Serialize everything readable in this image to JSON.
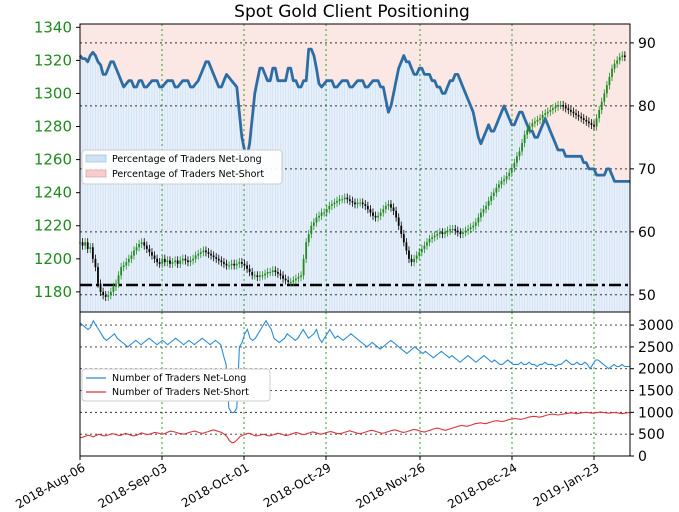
{
  "chart_data": [
    {
      "type": "line",
      "title": "Spot Gold Client Positioning",
      "left_axis": {
        "ylim": [
          1163,
          1342
        ],
        "ticks": [
          1180,
          1200,
          1220,
          1240,
          1260,
          1280,
          1300,
          1320,
          1340
        ],
        "color": "#1f8a1f"
      },
      "right_axis": {
        "ylim": [
          46,
          93
        ],
        "ticks": [
          50,
          60,
          70,
          80,
          90
        ]
      },
      "x_tick_labels": [
        "2018-Aug-06",
        "2018-Sep-03",
        "2018-Oct-01",
        "2018-Oct-29",
        "2018-Nov-26",
        "2018-Dec-24",
        "2019-Jan-23"
      ],
      "legend": {
        "placement": "upper-left",
        "entries": [
          {
            "label": "Percentage of Traders Net-Long",
            "color": "#cfe2f3"
          },
          {
            "label": "Percentage of Traders Net-Short",
            "color": "#f6cccc"
          }
        ]
      },
      "reference_line": {
        "value": 1179.5,
        "style": "dash-dot"
      },
      "series": [
        {
          "name": "Percentage of Traders Net-Long",
          "axis": "right",
          "color": "#2e6da4",
          "values": [
            88,
            87.5,
            87.5,
            87,
            88,
            88.5,
            88,
            87,
            86.5,
            85,
            85,
            86,
            87,
            87,
            86,
            85,
            84,
            83,
            83.5,
            84,
            84,
            83,
            83,
            84,
            84,
            83,
            83,
            83.5,
            84,
            84,
            84,
            83,
            83,
            83.5,
            84,
            84,
            84,
            83,
            83,
            83.5,
            84,
            84,
            84,
            83,
            83,
            83.5,
            84,
            85,
            86,
            87,
            87,
            86,
            85,
            84,
            83,
            83,
            84,
            85,
            84.5,
            84,
            83.5,
            83,
            79,
            75,
            73,
            72,
            74,
            78,
            82,
            84,
            86,
            86,
            85,
            84,
            84,
            86,
            86,
            84,
            84,
            84,
            84,
            86,
            86,
            84,
            84,
            83,
            83,
            84,
            84,
            89,
            89,
            88,
            86,
            83.5,
            83,
            83.5,
            84,
            84,
            84,
            83,
            83,
            83.5,
            84,
            84,
            84,
            83,
            83,
            83.5,
            84,
            84,
            84,
            83,
            83,
            83.5,
            84,
            84,
            84,
            83,
            83,
            81,
            79,
            80,
            82,
            84,
            86,
            87,
            88,
            87,
            87,
            86,
            85,
            85,
            86,
            86,
            85,
            85,
            85,
            84,
            84,
            83,
            83,
            82,
            82,
            83,
            84,
            84,
            85,
            85,
            84,
            83,
            82,
            81,
            80,
            79,
            77,
            75,
            74,
            75,
            76,
            77,
            76,
            76,
            77,
            78,
            79,
            80,
            79,
            78,
            77,
            77,
            78,
            79,
            79,
            78,
            77,
            76,
            76,
            75,
            75,
            76,
            77,
            78,
            77,
            76,
            75,
            74,
            73,
            73,
            73,
            72,
            72,
            72,
            72,
            72,
            72,
            72,
            71,
            71,
            70,
            70,
            70,
            69,
            69,
            69,
            69,
            70,
            70,
            69,
            68,
            68,
            68,
            68,
            68,
            68,
            68
          ]
        },
        {
          "name": "Spot Gold",
          "axis": "left",
          "type": "candlestick",
          "color_up": "#1f8a1f",
          "color_down": "#000000",
          "values": [
            1210,
            1208,
            1210,
            1206,
            1207,
            1200,
            1195,
            1185,
            1180,
            1178,
            1177,
            1178,
            1180,
            1183,
            1185,
            1190,
            1195,
            1196,
            1198,
            1200,
            1202,
            1205,
            1207,
            1209,
            1210,
            1208,
            1206,
            1204,
            1202,
            1200,
            1198,
            1197,
            1200,
            1198,
            1199,
            1197,
            1198,
            1199,
            1197,
            1199,
            1200,
            1199,
            1198,
            1199,
            1200,
            1202,
            1203,
            1204,
            1205,
            1204,
            1203,
            1202,
            1201,
            1200,
            1199,
            1198,
            1197,
            1196,
            1196,
            1197,
            1196,
            1197,
            1198,
            1197,
            1196,
            1194,
            1192,
            1190,
            1190,
            1189,
            1190,
            1190,
            1191,
            1192,
            1192,
            1193,
            1192,
            1191,
            1190,
            1188,
            1187,
            1186,
            1186,
            1187,
            1188,
            1189,
            1190,
            1200,
            1210,
            1215,
            1220,
            1222,
            1225,
            1226,
            1228,
            1228,
            1230,
            1232,
            1233,
            1234,
            1235,
            1236,
            1236,
            1237,
            1236,
            1235,
            1234,
            1233,
            1234,
            1234,
            1233,
            1232,
            1230,
            1228,
            1226,
            1225,
            1226,
            1228,
            1230,
            1232,
            1233,
            1231,
            1229,
            1225,
            1220,
            1215,
            1210,
            1205,
            1200,
            1198,
            1200,
            1202,
            1204,
            1206,
            1208,
            1210,
            1212,
            1213,
            1214,
            1215,
            1216,
            1215,
            1216,
            1217,
            1218,
            1218,
            1217,
            1216,
            1215,
            1216,
            1217,
            1218,
            1219,
            1220,
            1222,
            1225,
            1228,
            1230,
            1232,
            1235,
            1238,
            1240,
            1243,
            1245,
            1247,
            1248,
            1250,
            1252,
            1255,
            1258,
            1262,
            1265,
            1270,
            1275,
            1278,
            1280,
            1282,
            1283,
            1284,
            1285,
            1287,
            1288,
            1289,
            1290,
            1291,
            1292,
            1293,
            1293,
            1292,
            1291,
            1290,
            1289,
            1288,
            1287,
            1286,
            1285,
            1284,
            1283,
            1282,
            1281,
            1280,
            1285,
            1290,
            1295,
            1300,
            1305,
            1310,
            1315,
            1318,
            1320,
            1322,
            1323,
            1322
          ]
        }
      ]
    },
    {
      "type": "line",
      "left_axis": {
        "ticks": []
      },
      "right_axis": {
        "ylim": [
          0,
          3300
        ],
        "ticks": [
          0,
          500,
          1000,
          1500,
          2000,
          2500,
          3000
        ]
      },
      "legend": {
        "placement": "middle-left",
        "entries": [
          {
            "label": "Number of Traders Net-Long",
            "color": "#2b8cd6"
          },
          {
            "label": "Number of Traders Net-Short",
            "color": "#d9363e"
          }
        ]
      },
      "series": [
        {
          "name": "Number of Traders Net-Long",
          "color": "#2b8cd6",
          "values": [
            3050,
            3000,
            2950,
            2900,
            2950,
            3100,
            3000,
            2900,
            2800,
            2700,
            2650,
            2700,
            2750,
            2800,
            2700,
            2650,
            2600,
            2550,
            2500,
            2550,
            2600,
            2650,
            2600,
            2550,
            2600,
            2650,
            2700,
            2650,
            2600,
            2550,
            2600,
            2650,
            2600,
            2550,
            2600,
            2650,
            2700,
            2650,
            2600,
            2550,
            2600,
            2650,
            2600,
            2550,
            2600,
            2650,
            2700,
            2650,
            2600,
            2550,
            2600,
            2650,
            2600,
            2550,
            2300,
            2100,
            1100,
            1000,
            1000,
            1100,
            2500,
            2600,
            2800,
            2900,
            2700,
            2650,
            2700,
            2800,
            2900,
            3000,
            3100,
            3000,
            2900,
            2700,
            2650,
            2600,
            2650,
            2700,
            2800,
            2750,
            2700,
            2650,
            2700,
            2800,
            2900,
            2800,
            2700,
            2750,
            2800,
            2900,
            2700,
            2600,
            2700,
            2800,
            2900,
            2800,
            2700,
            2750,
            2700,
            2650,
            2700,
            2750,
            2800,
            2750,
            2700,
            2650,
            2600,
            2550,
            2500,
            2550,
            2600,
            2550,
            2500,
            2450,
            2500,
            2550,
            2600,
            2650,
            2600,
            2550,
            2500,
            2450,
            2400,
            2350,
            2400,
            2450,
            2500,
            2450,
            2400,
            2350,
            2400,
            2350,
            2300,
            2250,
            2300,
            2350,
            2400,
            2350,
            2300,
            2250,
            2300,
            2250,
            2200,
            2150,
            2200,
            2250,
            2300,
            2250,
            2200,
            2150,
            2200,
            2250,
            2300,
            2250,
            2200,
            2150,
            2200,
            2150,
            2100,
            2100,
            2150,
            2200,
            2150,
            2100,
            2100,
            2100,
            2150,
            2100,
            2100,
            2150,
            2100,
            2100,
            2050,
            2100,
            2100,
            2150,
            2100,
            2100,
            2100,
            2050,
            2100,
            2100,
            2150,
            2200,
            2150,
            2100,
            2100,
            2150,
            2100,
            2100,
            2150,
            2100,
            2000,
            2100,
            2200,
            2200,
            2150,
            2100,
            2050,
            2000,
            2050,
            2100,
            2050,
            2050,
            2100,
            2050,
            2050,
            2050
          ]
        },
        {
          "name": "Number of Traders Net-Short",
          "color": "#d9363e",
          "values": [
            420,
            430,
            450,
            480,
            460,
            440,
            470,
            500,
            480,
            460,
            470,
            490,
            510,
            500,
            480,
            470,
            490,
            520,
            500,
            480,
            460,
            470,
            500,
            530,
            510,
            490,
            500,
            520,
            540,
            530,
            510,
            500,
            520,
            550,
            570,
            560,
            540,
            520,
            510,
            500,
            520,
            540,
            560,
            570,
            550,
            530,
            520,
            540,
            560,
            580,
            600,
            580,
            560,
            540,
            500,
            450,
            350,
            300,
            320,
            380,
            450,
            480,
            500,
            520,
            510,
            480,
            460,
            470,
            490,
            500,
            470,
            460,
            480,
            500,
            520,
            510,
            490,
            470,
            480,
            500,
            520,
            540,
            520,
            500,
            490,
            510,
            530,
            550,
            540,
            520,
            500,
            510,
            530,
            550,
            560,
            540,
            520,
            510,
            520,
            540,
            560,
            580,
            560,
            540,
            520,
            510,
            530,
            550,
            570,
            590,
            580,
            560,
            540,
            520,
            530,
            550,
            570,
            590,
            600,
            580,
            560,
            540,
            550,
            570,
            590,
            610,
            600,
            580,
            560,
            550,
            570,
            590,
            610,
            630,
            640,
            620,
            600,
            590,
            610,
            630,
            650,
            670,
            690,
            700,
            690,
            680,
            700,
            720,
            740,
            750,
            760,
            750,
            740,
            760,
            780,
            800,
            810,
            800,
            790,
            800,
            820,
            840,
            850,
            860,
            850,
            840,
            850,
            870,
            890,
            900,
            910,
            900,
            890,
            900,
            920,
            940,
            950,
            960,
            950,
            940,
            950,
            960,
            970,
            980,
            990,
            980,
            970,
            980,
            990,
            1000,
            1000,
            990,
            980,
            990,
            1000,
            1010,
            1000,
            990,
            980,
            990,
            1000,
            990,
            980,
            970,
            980,
            990,
            1000
          ]
        }
      ]
    }
  ]
}
